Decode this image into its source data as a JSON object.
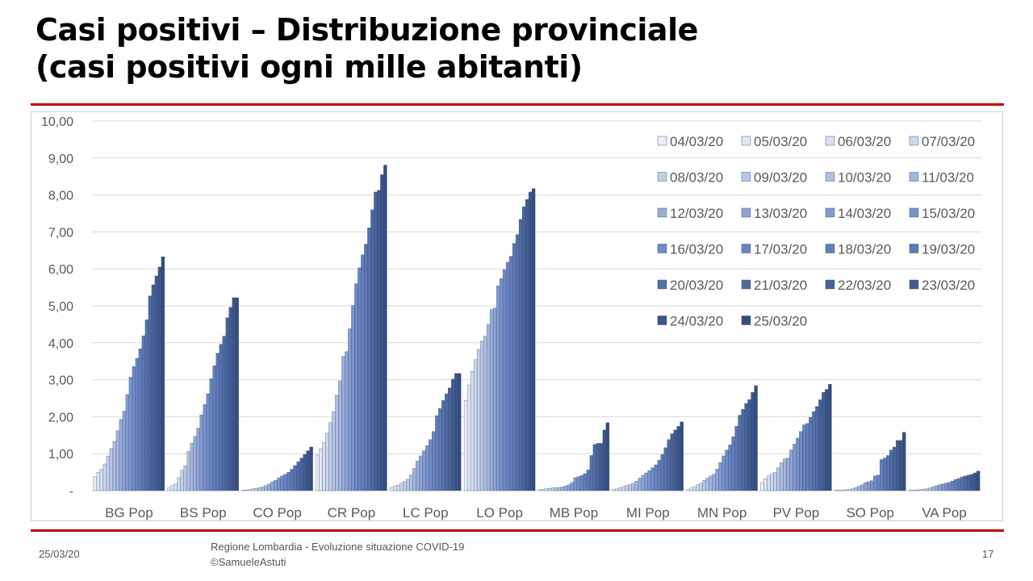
{
  "slide": {
    "title_line1": "Casi positivi – Distribuzione provinciale",
    "title_line2": "(casi positivi ogni mille abitanti)",
    "footer_date": "25/03/20",
    "footer_source_line1": "Regione Lombardia - Evoluzione situazione COVID-19",
    "footer_source_line2": "©SamueleAstuti",
    "page_number": "17",
    "accent_color": "#c00000"
  },
  "chart_data": {
    "type": "bar",
    "title": "",
    "xlabel": "",
    "ylabel": "",
    "ylim": [
      0,
      10
    ],
    "yticks": [
      "-",
      "1,00",
      "2,00",
      "3,00",
      "4,00",
      "5,00",
      "6,00",
      "7,00",
      "8,00",
      "9,00",
      "10,00"
    ],
    "grid": true,
    "legend_position": "top-right",
    "categories": [
      "BG Pop",
      "BS Pop",
      "CO Pop",
      "CR Pop",
      "LC Pop",
      "LO Pop",
      "MB Pop",
      "MI Pop",
      "MN Pop",
      "PV Pop",
      "SO Pop",
      "VA Pop"
    ],
    "series_names": [
      "04/03/20",
      "05/03/20",
      "06/03/20",
      "07/03/20",
      "08/03/20",
      "09/03/20",
      "10/03/20",
      "11/03/20",
      "12/03/20",
      "13/03/20",
      "14/03/20",
      "15/03/20",
      "16/03/20",
      "17/03/20",
      "18/03/20",
      "19/03/20",
      "20/03/20",
      "21/03/20",
      "22/03/20",
      "23/03/20",
      "24/03/20",
      "25/03/20"
    ],
    "series_colors": [
      "#e9edf6",
      "#e1e7f3",
      "#d8dff0",
      "#ced8ec",
      "#c4cfe8",
      "#bac7e4",
      "#b0bfe0",
      "#a5b6dc",
      "#9aadd8",
      "#8fa4d4",
      "#849bd0",
      "#7a93cc",
      "#708bc8",
      "#6984c2",
      "#637ebb",
      "#5d77b3",
      "#5671ab",
      "#4f6aa2",
      "#486399",
      "#425c90",
      "#3b5588",
      "#354e80"
    ],
    "values": [
      [
        0.38,
        0.5,
        0.58,
        0.72,
        0.93,
        1.14,
        1.33,
        1.62,
        1.93,
        2.15,
        2.6,
        3.07,
        3.36,
        3.58,
        3.84,
        4.19,
        4.62,
        5.27,
        5.57,
        5.81,
        6.05,
        6.33
      ],
      [
        0.08,
        0.14,
        0.18,
        0.35,
        0.55,
        0.67,
        1.06,
        1.28,
        1.47,
        1.69,
        2.05,
        2.33,
        2.62,
        3.03,
        3.38,
        3.72,
        3.96,
        4.18,
        4.68,
        4.96,
        5.22,
        5.22
      ],
      [
        0.02,
        0.02,
        0.03,
        0.05,
        0.06,
        0.08,
        0.1,
        0.14,
        0.18,
        0.24,
        0.28,
        0.34,
        0.4,
        0.44,
        0.5,
        0.58,
        0.68,
        0.78,
        0.88,
        0.98,
        1.08,
        1.18
      ],
      [
        0.96,
        1.13,
        1.3,
        1.55,
        1.84,
        2.14,
        2.58,
        2.97,
        3.63,
        3.76,
        4.38,
        5.01,
        5.6,
        6.03,
        6.38,
        6.67,
        7.11,
        7.6,
        8.08,
        8.13,
        8.55,
        8.81
      ],
      [
        0.08,
        0.12,
        0.15,
        0.2,
        0.25,
        0.31,
        0.42,
        0.6,
        0.8,
        0.94,
        1.08,
        1.22,
        1.38,
        1.6,
        2.03,
        2.22,
        2.44,
        2.62,
        2.78,
        3.02,
        3.17,
        3.17
      ],
      [
        2.44,
        2.86,
        3.23,
        3.54,
        3.82,
        4.05,
        4.18,
        4.49,
        4.9,
        4.94,
        5.54,
        5.74,
        5.98,
        6.18,
        6.34,
        6.69,
        6.93,
        7.34,
        7.68,
        7.88,
        8.08,
        8.17
      ],
      [
        0.03,
        0.04,
        0.05,
        0.06,
        0.07,
        0.08,
        0.08,
        0.1,
        0.13,
        0.16,
        0.22,
        0.35,
        0.38,
        0.41,
        0.46,
        0.56,
        0.95,
        1.25,
        1.28,
        1.28,
        1.64,
        1.84
      ],
      [
        0.03,
        0.05,
        0.08,
        0.11,
        0.14,
        0.16,
        0.2,
        0.26,
        0.34,
        0.42,
        0.48,
        0.54,
        0.62,
        0.7,
        0.82,
        0.98,
        1.16,
        1.38,
        1.54,
        1.64,
        1.74,
        1.86
      ],
      [
        0.03,
        0.07,
        0.11,
        0.16,
        0.2,
        0.28,
        0.34,
        0.4,
        0.44,
        0.58,
        0.76,
        0.94,
        1.1,
        1.24,
        1.46,
        1.74,
        2.04,
        2.2,
        2.36,
        2.46,
        2.66,
        2.84
      ],
      [
        0.22,
        0.32,
        0.4,
        0.44,
        0.5,
        0.62,
        0.76,
        0.86,
        0.88,
        1.1,
        1.26,
        1.42,
        1.6,
        1.78,
        1.82,
        1.98,
        2.14,
        2.28,
        2.46,
        2.66,
        2.74,
        2.88
      ],
      [
        0.02,
        0.02,
        0.02,
        0.03,
        0.03,
        0.05,
        0.08,
        0.12,
        0.16,
        0.22,
        0.24,
        0.27,
        0.4,
        0.42,
        0.84,
        0.88,
        0.95,
        1.1,
        1.18,
        1.36,
        1.36,
        1.58
      ],
      [
        0.02,
        0.02,
        0.02,
        0.03,
        0.04,
        0.05,
        0.07,
        0.1,
        0.13,
        0.16,
        0.18,
        0.2,
        0.22,
        0.26,
        0.3,
        0.33,
        0.37,
        0.4,
        0.42,
        0.44,
        0.48,
        0.53
      ]
    ]
  }
}
